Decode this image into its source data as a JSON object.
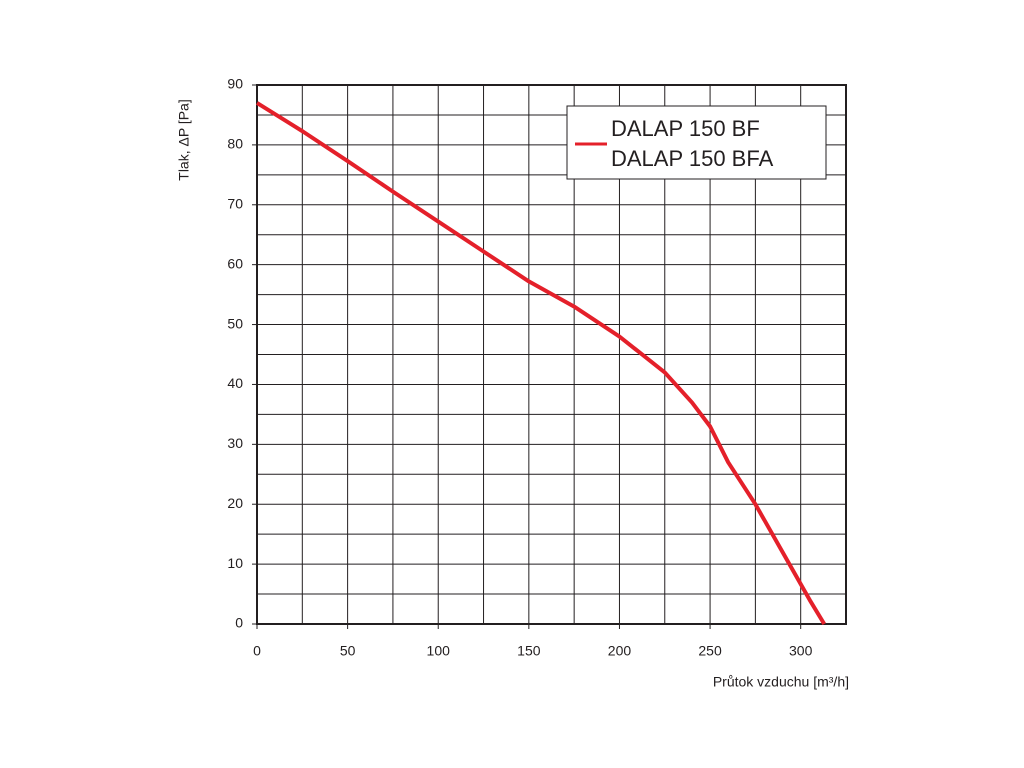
{
  "chart_data": {
    "type": "line",
    "x_label": "Průtok vzduchu [m³/h]",
    "y_label": "Tlak, ΔP [Pa]",
    "xlim": [
      0,
      325
    ],
    "ylim": [
      0,
      90
    ],
    "xticks": [
      0,
      50,
      100,
      150,
      200,
      250,
      300
    ],
    "yticks": [
      0,
      10,
      20,
      30,
      40,
      50,
      60,
      70,
      80,
      90
    ],
    "x_minor_grid": [
      25,
      75,
      125,
      175,
      225,
      275
    ],
    "y_minor_grid": [
      5,
      15,
      25,
      35,
      45,
      55,
      65,
      75,
      85
    ],
    "grid": true,
    "legend": "upper right",
    "series": [
      {
        "names": [
          "DALAP 150 BF",
          "DALAP 150 BFA"
        ],
        "color": "#e4202a",
        "x": [
          0,
          25,
          50,
          75,
          100,
          125,
          150,
          175,
          200,
          225,
          240,
          250,
          260,
          275,
          290,
          305,
          313
        ],
        "values": [
          87,
          82.3,
          77.3,
          72.2,
          67.2,
          62.2,
          57.2,
          53,
          48,
          42,
          37,
          33,
          27,
          20,
          12,
          4,
          0
        ]
      }
    ]
  }
}
